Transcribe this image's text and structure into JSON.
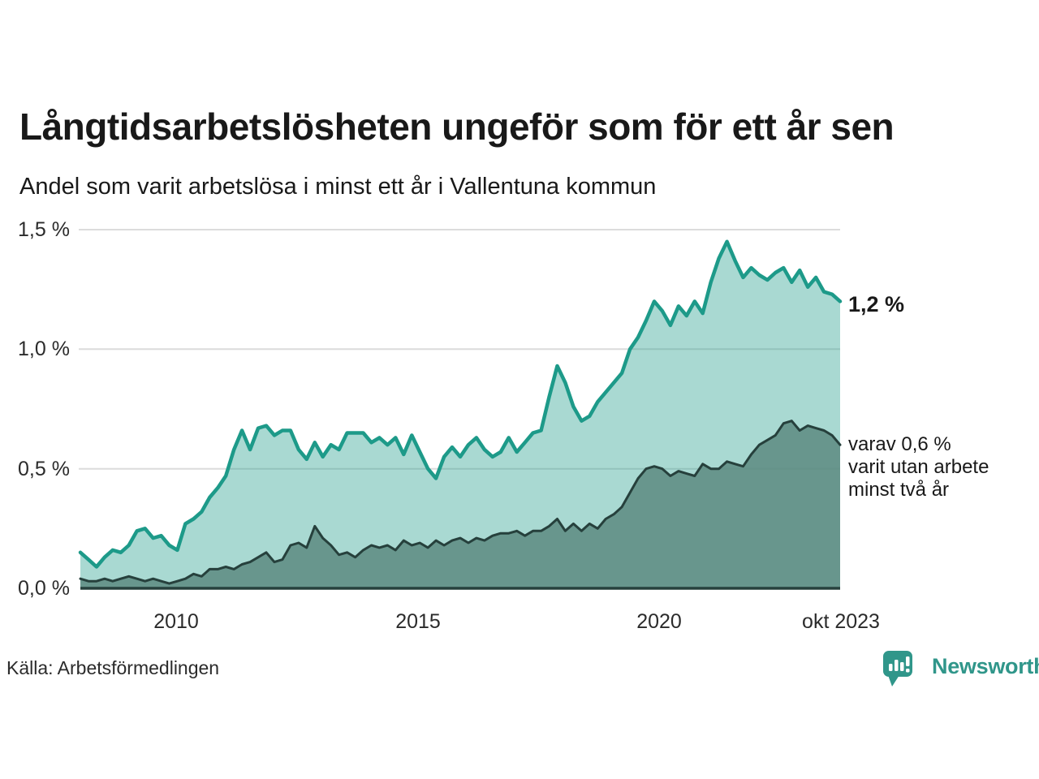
{
  "header": {
    "title": "Långtidsarbetslösheten ungeför som för ett år sen",
    "subtitle": "Andel som varit arbetslösa i minst ett år i Vallentuna kommun"
  },
  "chart_data": {
    "type": "area",
    "title": "Långtidsarbetslösheten ungeför som för ett år sen",
    "subtitle": "Andel som varit arbetslösa i minst ett år i Vallentuna kommun",
    "unit": "%",
    "ylim": [
      0,
      1.5
    ],
    "grid": true,
    "legend_position": "none-direct-annotations",
    "y_ticks": [
      "0,0 %",
      "0,5 %",
      "1,0 %",
      "1,5 %"
    ],
    "y_tick_values": [
      0,
      0.5,
      1.0,
      1.5
    ],
    "x_ticks": [
      {
        "label": "2010",
        "pos": 0.126
      },
      {
        "label": "2015",
        "pos": 0.4445
      },
      {
        "label": "2020",
        "pos": 0.762
      },
      {
        "label": "okt 2023",
        "pos": 1.0
      }
    ],
    "series": [
      {
        "name": "Andel som varit arbetslösa i minst ett år",
        "end_label": "1,2 %",
        "end_value": 1.2,
        "color": "#1d9a89",
        "fill": "rgba(29,154,137,0.38)",
        "values": [
          0.15,
          0.12,
          0.09,
          0.13,
          0.16,
          0.15,
          0.18,
          0.24,
          0.25,
          0.21,
          0.22,
          0.18,
          0.16,
          0.27,
          0.29,
          0.32,
          0.38,
          0.42,
          0.47,
          0.58,
          0.66,
          0.58,
          0.67,
          0.68,
          0.64,
          0.66,
          0.66,
          0.58,
          0.54,
          0.61,
          0.55,
          0.6,
          0.58,
          0.65,
          0.65,
          0.65,
          0.61,
          0.63,
          0.6,
          0.63,
          0.56,
          0.64,
          0.57,
          0.5,
          0.46,
          0.55,
          0.59,
          0.55,
          0.6,
          0.63,
          0.58,
          0.55,
          0.57,
          0.63,
          0.57,
          0.61,
          0.65,
          0.66,
          0.8,
          0.93,
          0.86,
          0.76,
          0.7,
          0.72,
          0.78,
          0.82,
          0.86,
          0.9,
          1.0,
          1.05,
          1.12,
          1.2,
          1.16,
          1.1,
          1.18,
          1.14,
          1.2,
          1.15,
          1.28,
          1.38,
          1.45,
          1.37,
          1.3,
          1.34,
          1.31,
          1.29,
          1.32,
          1.34,
          1.28,
          1.33,
          1.26,
          1.3,
          1.24,
          1.23,
          1.2
        ]
      },
      {
        "name": "varav varit utan arbete minst två år",
        "end_label": "varav 0,6 % varit utan arbete minst två år",
        "end_value": 0.6,
        "color": "#26403c",
        "fill": "rgba(94,140,131,0.88)",
        "values": [
          0.04,
          0.03,
          0.03,
          0.04,
          0.03,
          0.04,
          0.05,
          0.04,
          0.03,
          0.04,
          0.03,
          0.02,
          0.03,
          0.04,
          0.06,
          0.05,
          0.08,
          0.08,
          0.09,
          0.08,
          0.1,
          0.11,
          0.13,
          0.15,
          0.11,
          0.12,
          0.18,
          0.19,
          0.17,
          0.26,
          0.21,
          0.18,
          0.14,
          0.15,
          0.13,
          0.16,
          0.18,
          0.17,
          0.18,
          0.16,
          0.2,
          0.18,
          0.19,
          0.17,
          0.2,
          0.18,
          0.2,
          0.21,
          0.19,
          0.21,
          0.2,
          0.22,
          0.23,
          0.23,
          0.24,
          0.22,
          0.24,
          0.24,
          0.26,
          0.29,
          0.24,
          0.27,
          0.24,
          0.27,
          0.25,
          0.29,
          0.31,
          0.34,
          0.4,
          0.46,
          0.5,
          0.51,
          0.5,
          0.47,
          0.49,
          0.48,
          0.47,
          0.52,
          0.5,
          0.5,
          0.53,
          0.52,
          0.51,
          0.56,
          0.6,
          0.62,
          0.64,
          0.69,
          0.7,
          0.66,
          0.68,
          0.67,
          0.66,
          0.64,
          0.6
        ]
      }
    ]
  },
  "annotations": {
    "latest_total": "1,2 %",
    "detail_lines": [
      "varav 0,6 %",
      "varit utan arbete",
      "minst två år"
    ]
  },
  "footer": {
    "source": "Källa: Arbetsförmedlingen",
    "logo_text": "Newsworthy"
  },
  "icons": {
    "logo": "newsworthy-speech-bubble-bar-chart-icon"
  },
  "colors": {
    "accent_teal": "#1d9a89",
    "fill_teal": "rgba(29,154,137,0.38)",
    "dark_series": "#26403c",
    "fill_dark": "rgba(94,140,131,0.88)",
    "gridline": "#dcdcdc",
    "text": "#191919",
    "axis_text": "#2b2b2b",
    "logo_teal": "#30968a"
  }
}
